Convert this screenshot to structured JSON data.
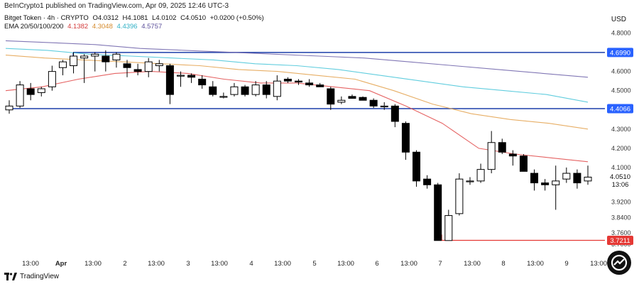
{
  "header": {
    "published": "BeInCrypto1 published on TradingView.com, Apr 09, 2025 12:46 UTC-3",
    "symbol_info": "Bitget Token · 4h · CRYPTO",
    "ohlc": {
      "o": "O4.0312",
      "h": "H4.1081",
      "l": "L4.0102",
      "c": "C4.0510",
      "change": "+0.0200 (+0.50%)"
    },
    "ema_title": "EMA 20/50/100/200",
    "ema_values": [
      "4.1382",
      "4.3048",
      "4.4396",
      "4.5757"
    ]
  },
  "currency": "USD",
  "footer": {
    "brand": "TradingView"
  },
  "colors": {
    "ema20": "#e04848",
    "ema50": "#e3a04a",
    "ema100": "#45c4d8",
    "ema200": "#6b5fa8",
    "level": "#2962ff",
    "support_red": "#e53935",
    "candle": "#000000"
  },
  "chart_data": {
    "type": "candlestick",
    "title": "Bitget Token · 4h · CRYPTO",
    "xlabel": "",
    "ylabel": "USD",
    "ylim": [
      3.66,
      4.85
    ],
    "x_tick_labels": [
      "13:00",
      "Apr",
      "13:00",
      "2",
      "13:00",
      "3",
      "13:00",
      "4",
      "13:00",
      "5",
      "13:00",
      "6",
      "13:00",
      "7",
      "13:00",
      "8",
      "13:00",
      "9",
      "13:00"
    ],
    "y_tick_labels": [
      4.8,
      4.6,
      4.5,
      4.3,
      4.2,
      4.1,
      4.0,
      3.92,
      3.84,
      3.76,
      3.7
    ],
    "price_labels": {
      "resistance": "4.6990",
      "level": "4.4066",
      "current": "4.0510",
      "countdown": "13:06",
      "support": "3.7211"
    },
    "horizontal_levels": [
      {
        "name": "resistance",
        "value": 4.699
      },
      {
        "name": "level",
        "value": 4.4066
      },
      {
        "name": "support",
        "value": 3.7211
      }
    ],
    "candles": [
      [
        4.4,
        4.45,
        4.38,
        4.42
      ],
      [
        4.42,
        4.55,
        4.41,
        4.53
      ],
      [
        4.51,
        4.54,
        4.45,
        4.48
      ],
      [
        4.49,
        4.52,
        4.47,
        4.51
      ],
      [
        4.52,
        4.63,
        4.5,
        4.6
      ],
      [
        4.62,
        4.66,
        4.58,
        4.65
      ],
      [
        4.63,
        4.7,
        4.59,
        4.68
      ],
      [
        4.67,
        4.69,
        4.54,
        4.68
      ],
      [
        4.68,
        4.7,
        4.6,
        4.69
      ],
      [
        4.68,
        4.71,
        4.6,
        4.65
      ],
      [
        4.66,
        4.7,
        4.62,
        4.69
      ],
      [
        4.64,
        4.66,
        4.57,
        4.62
      ],
      [
        4.61,
        4.64,
        4.58,
        4.6
      ],
      [
        4.6,
        4.67,
        4.57,
        4.65
      ],
      [
        4.63,
        4.66,
        4.6,
        4.64
      ],
      [
        4.63,
        4.64,
        4.43,
        4.48
      ],
      [
        4.58,
        4.6,
        4.52,
        4.58
      ],
      [
        4.58,
        4.59,
        4.54,
        4.57
      ],
      [
        4.56,
        4.58,
        4.51,
        4.53
      ],
      [
        4.52,
        4.55,
        4.47,
        4.48
      ],
      [
        4.47,
        4.49,
        4.46,
        4.47
      ],
      [
        4.48,
        4.54,
        4.47,
        4.52
      ],
      [
        4.52,
        4.53,
        4.47,
        4.48
      ],
      [
        4.48,
        4.55,
        4.47,
        4.53
      ],
      [
        4.53,
        4.55,
        4.46,
        4.48
      ],
      [
        4.47,
        4.58,
        4.45,
        4.55
      ],
      [
        4.56,
        4.57,
        4.54,
        4.55
      ],
      [
        4.55,
        4.56,
        4.53,
        4.545
      ],
      [
        4.54,
        4.56,
        4.52,
        4.53
      ],
      [
        4.53,
        4.54,
        4.52,
        4.52
      ],
      [
        4.51,
        4.52,
        4.4,
        4.43
      ],
      [
        4.44,
        4.47,
        4.43,
        4.45
      ],
      [
        4.47,
        4.48,
        4.46,
        4.46
      ],
      [
        4.465,
        4.47,
        4.45,
        4.45
      ],
      [
        4.45,
        4.46,
        4.41,
        4.42
      ],
      [
        4.42,
        4.44,
        4.4,
        4.42
      ],
      [
        4.42,
        4.43,
        4.31,
        4.34
      ],
      [
        4.33,
        4.34,
        4.14,
        4.18
      ],
      [
        4.18,
        4.19,
        4.0,
        4.03
      ],
      [
        4.04,
        4.06,
        3.99,
        4.01
      ],
      [
        4.01,
        4.02,
        3.72,
        3.72
      ],
      [
        3.72,
        3.88,
        3.72,
        3.85
      ],
      [
        3.86,
        4.07,
        3.85,
        4.04
      ],
      [
        4.03,
        4.05,
        4.01,
        4.03
      ],
      [
        4.03,
        4.12,
        4.02,
        4.09
      ],
      [
        4.09,
        4.29,
        4.07,
        4.23
      ],
      [
        4.23,
        4.25,
        4.17,
        4.18
      ],
      [
        4.17,
        4.19,
        4.11,
        4.16
      ],
      [
        4.16,
        4.17,
        4.08,
        4.08
      ],
      [
        4.07,
        4.09,
        3.98,
        4.02
      ],
      [
        4.02,
        4.04,
        3.98,
        4.01
      ],
      [
        4.01,
        4.11,
        3.88,
        4.03
      ],
      [
        4.04,
        4.1,
        4.02,
        4.07
      ],
      [
        4.07,
        4.09,
        3.99,
        4.02
      ],
      [
        4.03,
        4.11,
        4.01,
        4.05
      ]
    ],
    "ema_series": [
      {
        "name": "EMA 20",
        "values": [
          4.5,
          4.52,
          4.56,
          4.59,
          4.6,
          4.59,
          4.56,
          4.54,
          4.54,
          4.52,
          4.5,
          4.42,
          4.33,
          4.2,
          4.17,
          4.15,
          4.13
        ]
      },
      {
        "name": "EMA 50",
        "values": [
          4.685,
          4.67,
          4.66,
          4.65,
          4.64,
          4.63,
          4.61,
          4.6,
          4.58,
          4.56,
          4.5,
          4.43,
          4.38,
          4.35,
          4.33,
          4.3
        ]
      },
      {
        "name": "EMA 100",
        "values": [
          4.72,
          4.71,
          4.69,
          4.68,
          4.67,
          4.66,
          4.64,
          4.63,
          4.61,
          4.58,
          4.55,
          4.52,
          4.5,
          4.48,
          4.44
        ]
      },
      {
        "name": "EMA 200",
        "values": [
          4.76,
          4.75,
          4.74,
          4.72,
          4.71,
          4.7,
          4.69,
          4.68,
          4.67,
          4.65,
          4.63,
          4.61,
          4.59,
          4.57
        ]
      }
    ]
  }
}
